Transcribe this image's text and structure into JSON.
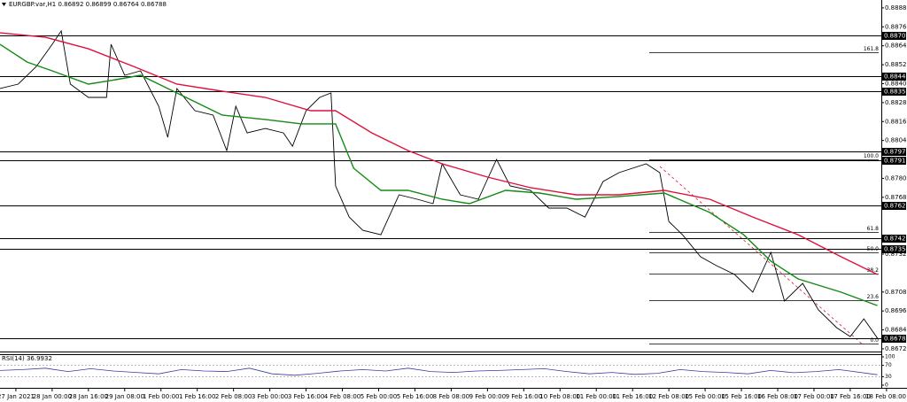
{
  "chart_data": {
    "type": "line",
    "title": "EURGBP.var,H1 0.86892 0.86899 0.86764 0.86788",
    "ylim": [
      0.86703,
      0.8893
    ],
    "xlim": [
      0,
      388.7
    ],
    "yticks": [
      {
        "value": 0.8888,
        "label": "0.88880"
      },
      {
        "value": 0.8876,
        "label": "0.88760"
      },
      {
        "value": 0.8864,
        "label": "0.88640"
      },
      {
        "value": 0.8852,
        "label": "0.88520"
      },
      {
        "value": 0.884,
        "label": "0.88400"
      },
      {
        "value": 0.8828,
        "label": "0.88280"
      },
      {
        "value": 0.8816,
        "label": "0.88160"
      },
      {
        "value": 0.8804,
        "label": "0.88040"
      },
      {
        "value": 0.878,
        "label": "0.87800"
      },
      {
        "value": 0.8768,
        "label": "0.87680"
      },
      {
        "value": 0.8732,
        "label": "0.87320"
      },
      {
        "value": 0.8708,
        "label": "0.87080"
      },
      {
        "value": 0.8696,
        "label": "0.86960"
      },
      {
        "value": 0.8684,
        "label": "0.86840"
      },
      {
        "value": 0.8672,
        "label": "0.86720"
      }
    ],
    "xticks": [
      {
        "value": 7,
        "label": "27 Jan 2021"
      },
      {
        "value": 23,
        "label": "28 Jan 00:00"
      },
      {
        "value": 39,
        "label": "28 Jan 16:00"
      },
      {
        "value": 55,
        "label": "29 Jan 08:00"
      },
      {
        "value": 71,
        "label": "1 Feb 00:00"
      },
      {
        "value": 87,
        "label": "1 Feb 16:00"
      },
      {
        "value": 103,
        "label": "2 Feb 08:00"
      },
      {
        "value": 119,
        "label": "3 Feb 00:00"
      },
      {
        "value": 135,
        "label": "3 Feb 16:00"
      },
      {
        "value": 151,
        "label": "4 Feb 08:00"
      },
      {
        "value": 167,
        "label": "5 Feb 00:00"
      },
      {
        "value": 183,
        "label": "5 Feb 16:00"
      },
      {
        "value": 199,
        "label": "8 Feb 08:00"
      },
      {
        "value": 215,
        "label": "9 Feb 00:00"
      },
      {
        "value": 231,
        "label": "9 Feb 16:00"
      },
      {
        "value": 247,
        "label": "10 Feb 08:00"
      },
      {
        "value": 263,
        "label": "11 Feb 00:00"
      },
      {
        "value": 279,
        "label": "11 Feb 16:00"
      },
      {
        "value": 295,
        "label": "12 Feb 08:00"
      },
      {
        "value": 311,
        "label": "15 Feb 00:00"
      },
      {
        "value": 327,
        "label": "15 Feb 16:00"
      },
      {
        "value": 343,
        "label": "16 Feb 08:00"
      },
      {
        "value": 359,
        "label": "17 Feb 00:00"
      },
      {
        "value": 375,
        "label": "17 Feb 16:00"
      },
      {
        "value": 391,
        "label": "18 Feb 08:00"
      }
    ],
    "levels": [
      0.88706,
      0.88446,
      {
        "value": 0.8835,
        "label": "0.88350"
      },
      {
        "value": 0.8797,
        "label": "0.87970"
      },
      0.87912,
      0.87628,
      0.87423,
      0.87354,
      0.86788
    ],
    "fib": [
      {
        "value": 0.88599,
        "label": "161.8"
      },
      {
        "value": 0.8792,
        "label": "100.0"
      },
      {
        "value": 0.8746,
        "label": "61.8"
      },
      {
        "value": 0.87331,
        "label": "50.0"
      },
      {
        "value": 0.87196,
        "label": "38.2"
      },
      {
        "value": 0.87028,
        "label": "23.6"
      },
      {
        "value": 0.86753,
        "label": "0.0"
      }
    ],
    "series": [
      {
        "color": "#000000",
        "x": [
          0,
          8,
          16,
          23,
          27,
          31,
          39,
          47,
          49,
          55,
          62,
          70,
          74,
          78,
          86,
          94,
          100,
          104,
          109,
          117,
          125,
          129,
          135,
          141,
          146,
          148,
          154,
          160,
          168,
          176,
          184,
          191,
          195,
          203,
          211,
          219,
          225,
          234,
          242,
          250,
          258,
          266,
          273,
          285,
          291,
          295,
          301,
          309,
          316,
          324,
          332,
          340,
          346,
          354,
          361,
          369,
          375,
          381,
          387
        ],
        "values": [
          0.88369,
          0.88397,
          0.88509,
          0.88649,
          0.88734,
          0.88397,
          0.88313,
          0.88313,
          0.88649,
          0.88453,
          0.88481,
          0.88257,
          0.8806,
          0.88369,
          0.88229,
          0.88201,
          0.87976,
          0.88257,
          0.88088,
          0.88116,
          0.88088,
          0.88004,
          0.88229,
          0.88313,
          0.88341,
          0.87752,
          0.87555,
          0.87471,
          0.87443,
          0.87696,
          0.87668,
          0.8764,
          0.87892,
          0.87696,
          0.87668,
          0.8792,
          0.87752,
          0.87724,
          0.87612,
          0.87612,
          0.87555,
          0.8778,
          0.87836,
          0.87892,
          0.87836,
          0.87527,
          0.87443,
          0.87303,
          0.87247,
          0.87191,
          0.87079,
          0.87331,
          0.87023,
          0.87135,
          0.86966,
          0.86854,
          0.86798,
          0.8691,
          0.86788
        ]
      },
      {
        "color": "#e0103c",
        "x": [
          0,
          20,
          39,
          59,
          78,
          98,
          117,
          137,
          148,
          164,
          180,
          195,
          215,
          234,
          254,
          273,
          293,
          313,
          332,
          352,
          371,
          387
        ],
        "values": [
          0.88722,
          0.88694,
          0.88621,
          0.88509,
          0.88397,
          0.88352,
          0.88313,
          0.88229,
          0.88229,
          0.88088,
          0.87976,
          0.87892,
          0.87808,
          0.87741,
          0.87696,
          0.87696,
          0.87724,
          0.87668,
          0.87555,
          0.87443,
          0.87303,
          0.87191
        ]
      },
      {
        "color": "#138a13",
        "x": [
          0,
          12,
          23,
          39,
          51,
          62,
          78,
          98,
          117,
          133,
          148,
          156,
          168,
          180,
          195,
          207,
          223,
          238,
          254,
          273,
          293,
          313,
          328,
          340,
          352,
          371,
          387
        ],
        "values": [
          0.88649,
          0.88537,
          0.88481,
          0.88397,
          0.88425,
          0.88453,
          0.88341,
          0.88201,
          0.88173,
          0.88145,
          0.88145,
          0.87864,
          0.87724,
          0.87724,
          0.87668,
          0.8764,
          0.87724,
          0.87707,
          0.87668,
          0.87685,
          0.87707,
          0.87584,
          0.87443,
          0.87275,
          0.87163,
          0.87079,
          0.86994
        ]
      }
    ],
    "rsi": {
      "label": "RSI(14) 36.9932",
      "color": "#3a3aa8",
      "ylim": [
        0,
        100
      ],
      "yticks": [
        100,
        70,
        30,
        0
      ],
      "x": [
        0,
        10,
        20,
        30,
        40,
        50,
        60,
        70,
        80,
        90,
        100,
        110,
        120,
        130,
        140,
        150,
        160,
        170,
        180,
        190,
        200,
        210,
        220,
        230,
        240,
        250,
        260,
        270,
        280,
        290,
        300,
        310,
        320,
        330,
        340,
        350,
        360,
        370,
        387
      ],
      "values": [
        52,
        55,
        60,
        48,
        58,
        50,
        45,
        40,
        55,
        50,
        48,
        60,
        40,
        35,
        42,
        50,
        55,
        50,
        60,
        48,
        45,
        50,
        52,
        55,
        58,
        48,
        40,
        45,
        38,
        42,
        55,
        48,
        45,
        40,
        52,
        44,
        48,
        55,
        37
      ]
    }
  }
}
